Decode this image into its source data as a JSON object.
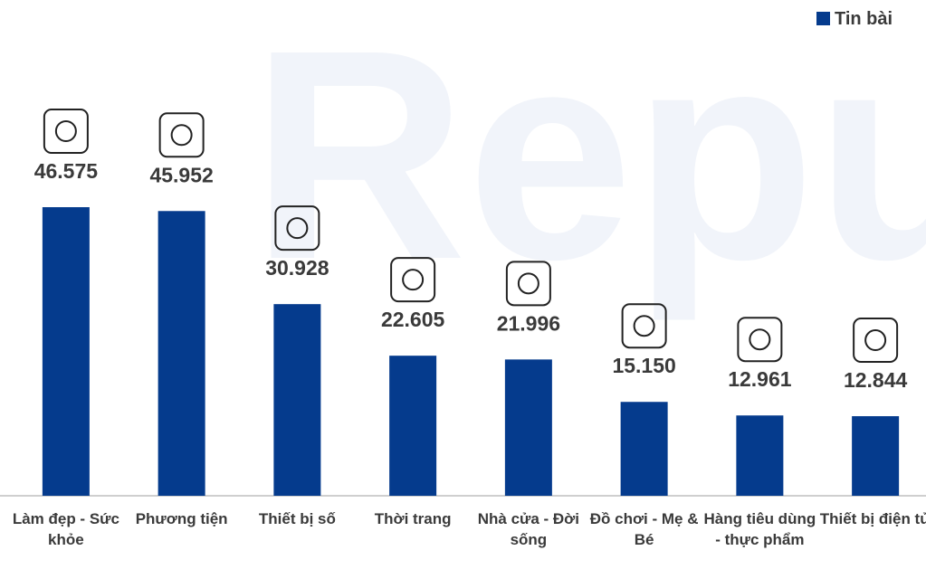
{
  "chart_data": {
    "type": "bar",
    "watermark": "Repu",
    "categories": [
      "Làm đẹp - Sức khỏe",
      "Phương tiện",
      "Thiết bị số",
      "Thời trang",
      "Nhà cửa - Đời sống",
      "Đồ chơi - Mẹ & Bé",
      "Hàng tiêu dùng - thực phẩm",
      "Thiết bị điện tử"
    ],
    "series": [
      {
        "name": "Tin bài",
        "color": "#053b8d",
        "values": [
          46575,
          45952,
          30928,
          22605,
          21996,
          15150,
          12961,
          12844
        ],
        "value_labels": [
          "46.575",
          "45.952",
          "30.928",
          "22.605",
          "21.996",
          "15.150",
          "12.961",
          "12.844"
        ]
      }
    ],
    "legend": "top-right"
  }
}
